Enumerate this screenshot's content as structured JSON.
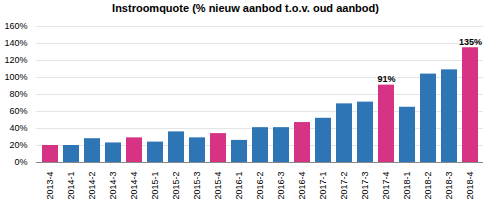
{
  "chart_data": {
    "type": "bar",
    "title": "Instroomquote (% nieuw aanbod t.o.v. oud aanbod)",
    "categories": [
      "2013-4",
      "2014-1",
      "2014-2",
      "2014-3",
      "2014-4",
      "2015-1",
      "2015-2",
      "2015-3",
      "2015-4",
      "2016-1",
      "2016-2",
      "2016-3",
      "2016-4",
      "2017-1",
      "2017-2",
      "2017-3",
      "2017-4",
      "2018-1",
      "2018-2",
      "2018-3",
      "2018-4"
    ],
    "values": [
      20,
      20,
      28,
      23,
      29,
      24,
      36,
      29,
      34,
      26,
      41,
      41,
      47,
      52,
      69,
      71,
      91,
      65,
      104,
      109,
      135
    ],
    "colors": [
      "#d63384",
      "#2e75b6",
      "#2e75b6",
      "#2e75b6",
      "#d63384",
      "#2e75b6",
      "#2e75b6",
      "#2e75b6",
      "#d63384",
      "#2e75b6",
      "#2e75b6",
      "#2e75b6",
      "#d63384",
      "#2e75b6",
      "#2e75b6",
      "#2e75b6",
      "#d63384",
      "#2e75b6",
      "#2e75b6",
      "#2e75b6",
      "#d63384"
    ],
    "annotations": [
      {
        "category": "2017-4",
        "value": 91,
        "label": "91%"
      },
      {
        "category": "2018-4",
        "value": 135,
        "label": "135%"
      }
    ],
    "ylim": [
      0,
      160
    ],
    "yticks": [
      {
        "value": 0,
        "label": "0%"
      },
      {
        "value": 20,
        "label": "20%"
      },
      {
        "value": 40,
        "label": "40%"
      },
      {
        "value": 60,
        "label": "60%"
      },
      {
        "value": 80,
        "label": "80%"
      },
      {
        "value": 100,
        "label": "100%"
      },
      {
        "value": 120,
        "label": "120%"
      },
      {
        "value": 140,
        "label": "140%"
      },
      {
        "value": 160,
        "label": "160%"
      }
    ],
    "grid": true
  }
}
